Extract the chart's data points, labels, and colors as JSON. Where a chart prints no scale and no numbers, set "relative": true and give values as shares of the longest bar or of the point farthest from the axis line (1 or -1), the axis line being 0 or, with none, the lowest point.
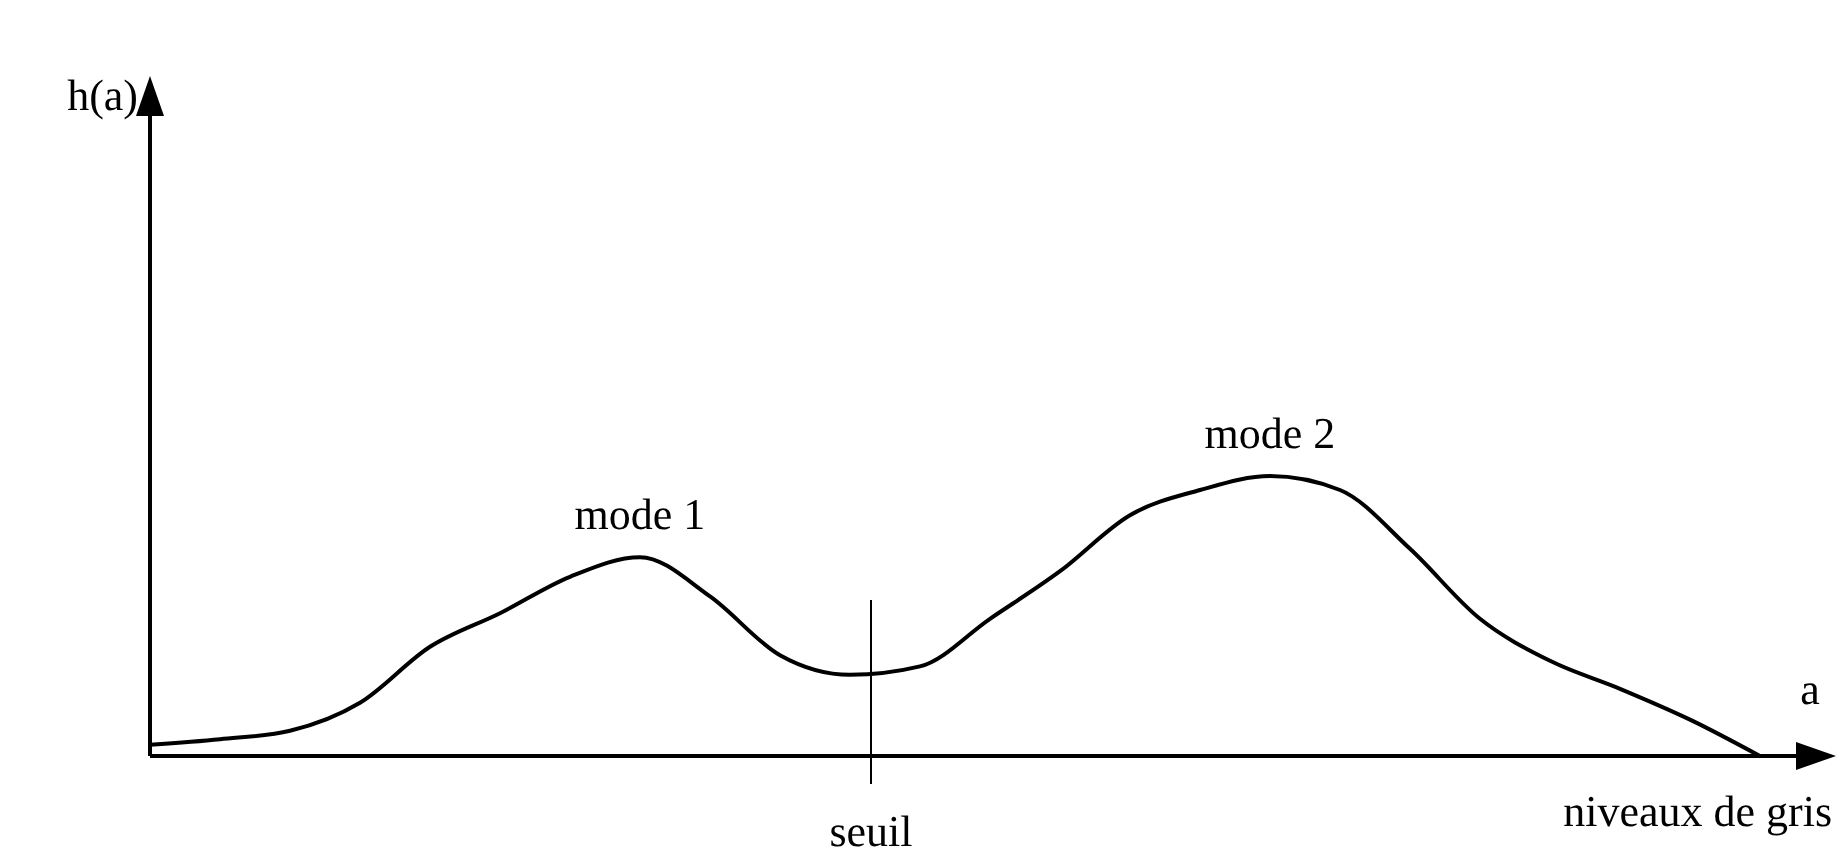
{
  "chart_data": {
    "type": "line",
    "relative": true,
    "xlabel": "a",
    "categories": [
      null,
      null,
      null,
      null,
      null,
      null,
      null,
      null,
      null,
      null,
      null,
      null,
      null,
      null,
      null,
      null,
      null,
      null,
      null,
      null,
      null,
      null,
      null,
      null
    ],
    "series": [
      {
        "color": "#000000",
        "values": [
          0.04,
          0.06,
          0.09,
          0.19,
          0.39,
          0.51,
          0.64,
          0.71,
          0.57,
          0.36,
          0.29,
          0.32,
          0.49,
          0.66,
          0.86,
          0.95,
          1,
          0.95,
          0.74,
          0.49,
          0.34,
          0.24,
          0.13,
          0
        ]
      }
    ],
    "annotations": [
      "h(a)",
      "mode 1",
      "mode 2",
      "seuil",
      "niveaux de gris"
    ],
    "marker": "none",
    "line_style": "solid"
  }
}
